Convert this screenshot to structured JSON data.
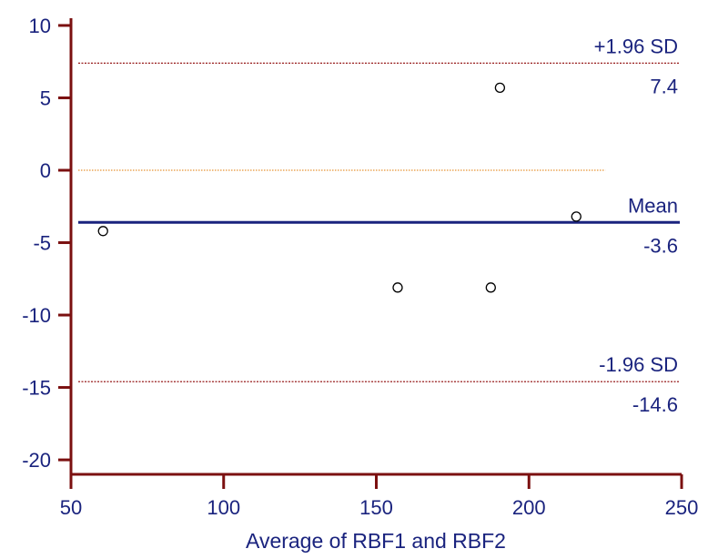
{
  "chart_data": {
    "type": "scatter",
    "title": "",
    "xlabel": "Average of RBF1 and RBF2",
    "ylabel": "",
    "xlim": [
      50,
      250
    ],
    "ylim": [
      -21,
      10.5
    ],
    "xticks": [
      50,
      100,
      150,
      200,
      250
    ],
    "yticks": [
      10,
      5,
      0,
      -5,
      -10,
      -15,
      -20
    ],
    "grid": false,
    "points": [
      {
        "x": 60.5,
        "y": -4.2
      },
      {
        "x": 157,
        "y": -8.1
      },
      {
        "x": 187.5,
        "y": -8.1
      },
      {
        "x": 190.5,
        "y": 5.7
      },
      {
        "x": 215.5,
        "y": -3.2
      }
    ],
    "reference_lines": [
      {
        "name": "+1.96 SD",
        "value": 7.4,
        "value_label": "7.4",
        "style": "dotted",
        "color": "#8b0000"
      },
      {
        "name": "Mean",
        "value": -3.6,
        "value_label": "-3.6",
        "style": "solid",
        "color": "#1a237e"
      },
      {
        "name": "-1.96 SD",
        "value": -14.6,
        "value_label": "-14.6",
        "style": "dotted",
        "color": "#8b0000"
      }
    ],
    "zero_line": {
      "value": 0,
      "x_end": 225,
      "style": "dotted",
      "color": "#e07a00"
    },
    "colors": {
      "axis": "#7b1010",
      "text": "#1a237e",
      "point": "#000000"
    }
  }
}
